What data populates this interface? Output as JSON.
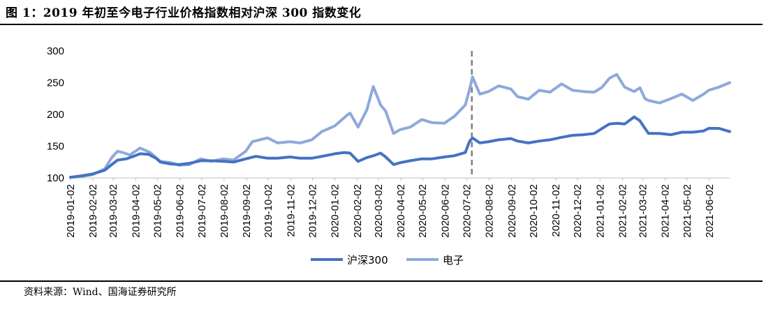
{
  "header": {
    "title": "图 1：2019 年初至今电子行业价格指数相对沪深 300 指数变化"
  },
  "footer": {
    "source": "资料来源：Wind、国海证券研究所"
  },
  "chart_data": {
    "type": "line",
    "title": "",
    "xlabel": "",
    "ylabel": "",
    "ylim": [
      100,
      300
    ],
    "yticks": [
      100,
      150,
      200,
      250,
      300
    ],
    "grid": false,
    "legend": "bottom-center",
    "x_tick_labels": [
      "2019-01-02",
      "2019-02-02",
      "2019-03-02",
      "2019-04-02",
      "2019-05-02",
      "2019-06-02",
      "2019-07-02",
      "2019-08-02",
      "2019-09-02",
      "2019-10-02",
      "2019-11-02",
      "2019-12-02",
      "2020-01-02",
      "2020-02-02",
      "2020-03-02",
      "2020-04-02",
      "2020-05-02",
      "2020-06-02",
      "2020-07-02",
      "2020-08-02",
      "2020-09-02",
      "2020-10-02",
      "2020-11-02",
      "2020-12-02",
      "2021-01-02",
      "2021-02-02",
      "2021-03-02",
      "2021-04-02",
      "2021-05-02",
      "2021-06-02"
    ],
    "reference_line": {
      "x": "2020-07-09",
      "style": "dashed",
      "color": "#808080"
    },
    "series": [
      {
        "name": "沪深300",
        "color": "#4472C4",
        "points": [
          [
            "2019-01-02",
            101
          ],
          [
            "2019-01-15",
            103
          ],
          [
            "2019-02-01",
            106
          ],
          [
            "2019-02-18",
            112
          ],
          [
            "2019-03-01",
            122
          ],
          [
            "2019-03-08",
            128
          ],
          [
            "2019-03-20",
            130
          ],
          [
            "2019-04-01",
            135
          ],
          [
            "2019-04-08",
            138
          ],
          [
            "2019-04-20",
            137
          ],
          [
            "2019-04-30",
            131
          ],
          [
            "2019-05-06",
            125
          ],
          [
            "2019-05-20",
            122
          ],
          [
            "2019-06-01",
            121
          ],
          [
            "2019-06-15",
            123
          ],
          [
            "2019-07-01",
            127
          ],
          [
            "2019-07-15",
            127
          ],
          [
            "2019-08-01",
            126
          ],
          [
            "2019-08-15",
            125
          ],
          [
            "2019-09-01",
            130
          ],
          [
            "2019-09-15",
            134
          ],
          [
            "2019-10-01",
            131
          ],
          [
            "2019-10-15",
            131
          ],
          [
            "2019-11-01",
            133
          ],
          [
            "2019-11-15",
            131
          ],
          [
            "2019-12-01",
            131
          ],
          [
            "2019-12-15",
            134
          ],
          [
            "2020-01-02",
            138
          ],
          [
            "2020-01-15",
            140
          ],
          [
            "2020-01-23",
            139
          ],
          [
            "2020-02-03",
            126
          ],
          [
            "2020-02-15",
            132
          ],
          [
            "2020-02-24",
            135
          ],
          [
            "2020-03-05",
            139
          ],
          [
            "2020-03-12",
            133
          ],
          [
            "2020-03-23",
            121
          ],
          [
            "2020-04-01",
            124
          ],
          [
            "2020-04-15",
            127
          ],
          [
            "2020-05-01",
            130
          ],
          [
            "2020-05-15",
            130
          ],
          [
            "2020-06-01",
            133
          ],
          [
            "2020-06-15",
            135
          ],
          [
            "2020-06-30",
            140
          ],
          [
            "2020-07-06",
            158
          ],
          [
            "2020-07-10",
            163
          ],
          [
            "2020-07-20",
            155
          ],
          [
            "2020-08-01",
            157
          ],
          [
            "2020-08-15",
            160
          ],
          [
            "2020-09-01",
            162
          ],
          [
            "2020-09-10",
            158
          ],
          [
            "2020-09-25",
            155
          ],
          [
            "2020-10-10",
            158
          ],
          [
            "2020-10-25",
            160
          ],
          [
            "2020-11-10",
            164
          ],
          [
            "2020-11-25",
            167
          ],
          [
            "2020-12-10",
            168
          ],
          [
            "2020-12-25",
            170
          ],
          [
            "2021-01-05",
            178
          ],
          [
            "2021-01-15",
            185
          ],
          [
            "2021-01-25",
            186
          ],
          [
            "2021-02-05",
            185
          ],
          [
            "2021-02-18",
            196
          ],
          [
            "2021-02-26",
            190
          ],
          [
            "2021-03-05",
            178
          ],
          [
            "2021-03-10",
            170
          ],
          [
            "2021-03-25",
            170
          ],
          [
            "2021-04-10",
            168
          ],
          [
            "2021-04-25",
            172
          ],
          [
            "2021-05-10",
            172
          ],
          [
            "2021-05-25",
            174
          ],
          [
            "2021-06-01",
            178
          ],
          [
            "2021-06-15",
            178
          ],
          [
            "2021-06-30",
            173
          ]
        ]
      },
      {
        "name": "电子",
        "color": "#8EA9DB",
        "points": [
          [
            "2019-01-02",
            101
          ],
          [
            "2019-01-15",
            102
          ],
          [
            "2019-02-01",
            105
          ],
          [
            "2019-02-18",
            114
          ],
          [
            "2019-02-28",
            132
          ],
          [
            "2019-03-08",
            142
          ],
          [
            "2019-03-15",
            140
          ],
          [
            "2019-03-25",
            136
          ],
          [
            "2019-04-08",
            147
          ],
          [
            "2019-04-22",
            140
          ],
          [
            "2019-05-06",
            126
          ],
          [
            "2019-05-20",
            124
          ],
          [
            "2019-06-01",
            120
          ],
          [
            "2019-06-15",
            121
          ],
          [
            "2019-07-01",
            130
          ],
          [
            "2019-07-15",
            126
          ],
          [
            "2019-08-01",
            130
          ],
          [
            "2019-08-15",
            128
          ],
          [
            "2019-09-01",
            142
          ],
          [
            "2019-09-10",
            157
          ],
          [
            "2019-09-20",
            160
          ],
          [
            "2019-10-01",
            163
          ],
          [
            "2019-10-15",
            155
          ],
          [
            "2019-11-01",
            157
          ],
          [
            "2019-11-15",
            155
          ],
          [
            "2019-12-01",
            160
          ],
          [
            "2019-12-15",
            173
          ],
          [
            "2020-01-02",
            182
          ],
          [
            "2020-01-20",
            200
          ],
          [
            "2020-01-23",
            202
          ],
          [
            "2020-02-03",
            180
          ],
          [
            "2020-02-15",
            207
          ],
          [
            "2020-02-24",
            244
          ],
          [
            "2020-03-05",
            215
          ],
          [
            "2020-03-12",
            205
          ],
          [
            "2020-03-23",
            170
          ],
          [
            "2020-04-01",
            176
          ],
          [
            "2020-04-15",
            180
          ],
          [
            "2020-05-01",
            192
          ],
          [
            "2020-05-15",
            187
          ],
          [
            "2020-06-01",
            186
          ],
          [
            "2020-06-15",
            197
          ],
          [
            "2020-06-30",
            215
          ],
          [
            "2020-07-06",
            240
          ],
          [
            "2020-07-10",
            259
          ],
          [
            "2020-07-20",
            232
          ],
          [
            "2020-08-01",
            236
          ],
          [
            "2020-08-15",
            245
          ],
          [
            "2020-09-01",
            240
          ],
          [
            "2020-09-10",
            228
          ],
          [
            "2020-09-25",
            224
          ],
          [
            "2020-10-10",
            238
          ],
          [
            "2020-10-25",
            235
          ],
          [
            "2020-11-10",
            248
          ],
          [
            "2020-11-25",
            238
          ],
          [
            "2020-12-10",
            236
          ],
          [
            "2020-12-25",
            235
          ],
          [
            "2021-01-05",
            243
          ],
          [
            "2021-01-15",
            257
          ],
          [
            "2021-01-25",
            263
          ],
          [
            "2021-02-05",
            243
          ],
          [
            "2021-02-18",
            236
          ],
          [
            "2021-02-26",
            242
          ],
          [
            "2021-03-05",
            225
          ],
          [
            "2021-03-10",
            222
          ],
          [
            "2021-03-25",
            218
          ],
          [
            "2021-04-10",
            225
          ],
          [
            "2021-04-25",
            232
          ],
          [
            "2021-05-10",
            222
          ],
          [
            "2021-05-25",
            232
          ],
          [
            "2021-06-01",
            238
          ],
          [
            "2021-06-15",
            243
          ],
          [
            "2021-06-30",
            250
          ]
        ]
      }
    ]
  }
}
